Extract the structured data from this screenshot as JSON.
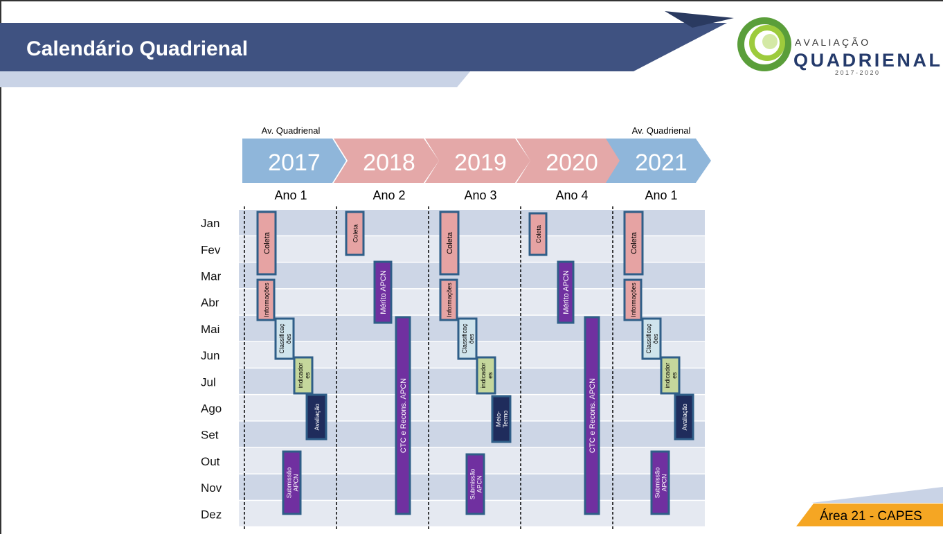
{
  "header": {
    "title": "Calendário Quadrienal"
  },
  "logo": {
    "top": "A V A L I A Ç Ã O",
    "main": "QUADRIENAL",
    "years": "2 0 1 7  -  2 0 2 0"
  },
  "timeline": {
    "top_labels": [
      "Av. Quadrienal",
      null,
      null,
      null,
      "Av. Quadrienal"
    ],
    "years": [
      "2017",
      "2018",
      "2019",
      "2020",
      "2021"
    ],
    "phases": [
      "Ano 1",
      "Ano 2",
      "Ano 3",
      "Ano 4",
      "Ano 1"
    ]
  },
  "months": [
    "Jan",
    "Fev",
    "Mar",
    "Abr",
    "Mai",
    "Jun",
    "Jul",
    "Ago",
    "Set",
    "Out",
    "Nov",
    "Dez"
  ],
  "blocks": [
    {
      "label": [
        "Coleta"
      ]
    },
    {
      "label": [
        "Informações"
      ]
    },
    {
      "label": [
        "Classificaç",
        "ões"
      ]
    },
    {
      "label": [
        "indicador",
        "es"
      ]
    },
    {
      "label": [
        "Avaliação"
      ]
    },
    {
      "label": [
        "Submissão",
        "APCN"
      ]
    },
    {
      "label": [
        "Coleta"
      ]
    },
    {
      "label": [
        "Mérito APCN"
      ]
    },
    {
      "label": [
        "CTC e Recons. APCN"
      ]
    },
    {
      "label": [
        "Coleta"
      ]
    },
    {
      "label": [
        "Informações"
      ]
    },
    {
      "label": [
        "Classificaç",
        "ões"
      ]
    },
    {
      "label": [
        "indicador",
        "es"
      ]
    },
    {
      "label": [
        "Meio-",
        "Termo"
      ]
    },
    {
      "label": [
        "Submissão",
        "APCN"
      ]
    },
    {
      "label": [
        "Coleta"
      ]
    },
    {
      "label": [
        "Mérito APCN"
      ]
    },
    {
      "label": [
        "CTC e Recons. APCN"
      ]
    },
    {
      "label": [
        "Coleta"
      ]
    },
    {
      "label": [
        "Informações"
      ]
    },
    {
      "label": [
        "Classificaç",
        "ões"
      ]
    },
    {
      "label": [
        "indicador",
        "es"
      ]
    },
    {
      "label": [
        "Avaliação"
      ]
    },
    {
      "label": [
        "Submissão",
        "APCN"
      ]
    }
  ],
  "footer": {
    "tag": "Área 21 - CAPES"
  }
}
